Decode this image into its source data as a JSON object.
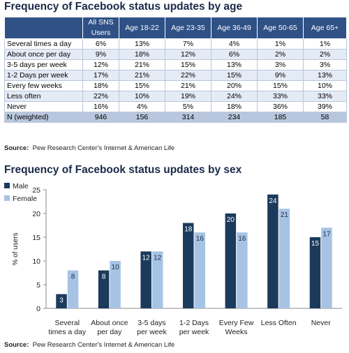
{
  "table": {
    "title": "Frequency of Facebook status updates by age",
    "headers": [
      "",
      "All SNS Users",
      "Age 18-22",
      "Age 23-35",
      "Age 36-49",
      "Age 50-65",
      "Age 65+"
    ],
    "rows": [
      {
        "label": "Several times a day",
        "values": [
          "6%",
          "13%",
          "7%",
          "4%",
          "1%",
          "1%"
        ]
      },
      {
        "label": "About once per day",
        "values": [
          "9%",
          "18%",
          "12%",
          "6%",
          "2%",
          "2%"
        ]
      },
      {
        "label": "3-5 days per week",
        "values": [
          "12%",
          "21%",
          "15%",
          "13%",
          "3%",
          "3%"
        ]
      },
      {
        "label": "1-2 Days per week",
        "values": [
          "17%",
          "21%",
          "22%",
          "15%",
          "9%",
          "13%"
        ]
      },
      {
        "label": "Every few weeks",
        "values": [
          "18%",
          "15%",
          "21%",
          "20%",
          "15%",
          "10%"
        ]
      },
      {
        "label": "Less often",
        "values": [
          "22%",
          "10%",
          "19%",
          "24%",
          "33%",
          "33%"
        ]
      },
      {
        "label": "Never",
        "values": [
          "16%",
          "4%",
          "5%",
          "18%",
          "36%",
          "39%"
        ]
      },
      {
        "label": "N (weighted)",
        "values": [
          "946",
          "156",
          "314",
          "234",
          "185",
          "58"
        ]
      }
    ],
    "source_label": "Source:",
    "source_text": "Pew Research Center's Internet & American Life"
  },
  "colors": {
    "male": "#1b3a5c",
    "female": "#a7c3e4",
    "header": "#2f5186"
  },
  "chart_data": {
    "type": "bar",
    "title": "Frequency of Facebook status updates by sex",
    "categories": [
      [
        "Several",
        "times a day"
      ],
      [
        "About once",
        "per day"
      ],
      [
        "3-5 days",
        "per week"
      ],
      [
        "1-2 Days",
        "per week"
      ],
      [
        "Every Few",
        "Weeks"
      ],
      [
        "Less Often"
      ],
      [
        "Never"
      ]
    ],
    "series": [
      {
        "name": "Male",
        "values": [
          3,
          8,
          12,
          18,
          20,
          24,
          15
        ]
      },
      {
        "name": "Female",
        "values": [
          8,
          10,
          12,
          16,
          16,
          21,
          17
        ]
      }
    ],
    "ylabel": "% of users",
    "ylim": [
      0,
      25
    ],
    "yticks": [
      0,
      5,
      10,
      15,
      20,
      25
    ],
    "legend": "top-left",
    "grid": false,
    "source_label": "Source:",
    "source_text": "Pew Research Center's Internet & American Life"
  }
}
